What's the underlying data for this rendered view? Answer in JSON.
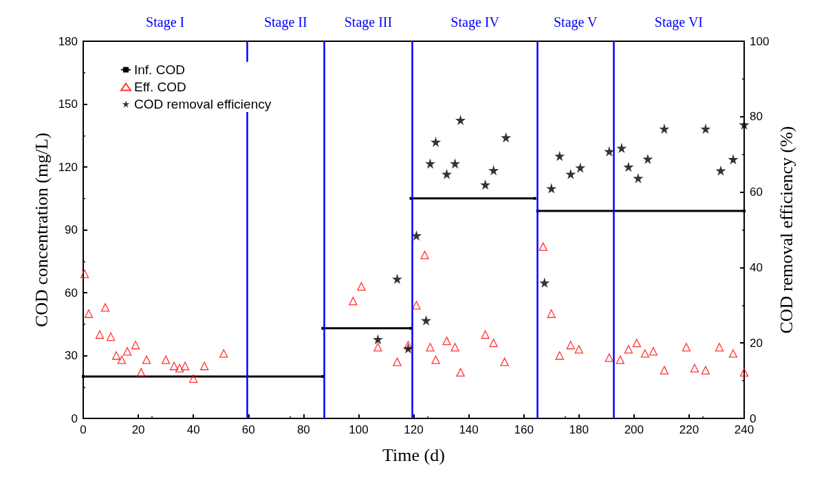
{
  "chart_data": {
    "type": "scatter",
    "xlabel": "Time (d)",
    "ylabel": "COD concentration (mg/L)",
    "y2label": "COD removal efficiency (%)",
    "xlim": [
      0,
      240
    ],
    "xticks": [
      0,
      20,
      40,
      60,
      80,
      100,
      120,
      140,
      160,
      180,
      200,
      220,
      240
    ],
    "ylim": [
      0,
      180
    ],
    "yticks": [
      0,
      30,
      60,
      90,
      120,
      150,
      180
    ],
    "y2lim": [
      0,
      100
    ],
    "y2ticks": [
      0,
      20,
      40,
      60,
      80,
      100
    ],
    "grid": false,
    "legend": "top left",
    "series": [
      {
        "name": "Inf. COD",
        "type": "line",
        "marker": "square",
        "color": "#000000",
        "x": [
          0,
          87,
          null,
          87,
          119,
          null,
          119,
          164,
          null,
          165,
          240
        ],
        "values": [
          20,
          20,
          null,
          43,
          43,
          null,
          105,
          105,
          null,
          99,
          99
        ]
      },
      {
        "name": "Eff. COD",
        "type": "scatter",
        "marker": "triangle",
        "color": "#ff0000",
        "x": [
          0.5,
          2,
          6,
          8,
          10,
          12,
          14,
          16,
          19,
          21,
          23,
          30,
          33,
          35,
          37,
          40,
          44,
          51,
          98,
          101,
          107,
          114,
          118,
          121,
          124,
          126,
          128,
          132,
          135,
          137,
          146,
          149,
          153,
          167,
          170,
          173,
          177,
          180,
          191,
          195,
          198,
          201,
          204,
          207,
          211,
          219,
          222,
          226,
          231,
          236,
          240
        ],
        "values": [
          69,
          50,
          40,
          53,
          39,
          30,
          28,
          32,
          35,
          22,
          28,
          28,
          25,
          24,
          25,
          19,
          25,
          31,
          56,
          63,
          34,
          27,
          35,
          54,
          78,
          34,
          28,
          37,
          34,
          22,
          40,
          36,
          27,
          82,
          50,
          30,
          35,
          33,
          29,
          28,
          33,
          36,
          31,
          32,
          23,
          34,
          24,
          23,
          34,
          31,
          22
        ]
      },
      {
        "name": "COD removal efficiency",
        "type": "scatter",
        "marker": "star",
        "color": "#000000",
        "axis": "y2",
        "x": [
          107,
          114,
          118,
          121,
          124.5,
          126,
          128,
          132,
          135,
          137,
          146,
          149,
          153.5,
          167.5,
          170,
          173,
          177,
          180.5,
          191,
          195.5,
          198,
          201.5,
          205,
          211,
          226,
          231.5,
          236,
          240
        ],
        "values": [
          21,
          37,
          18.6,
          48.5,
          26,
          67.6,
          73.3,
          64.8,
          67.6,
          79.1,
          62,
          65.8,
          74.5,
          36,
          61,
          69.6,
          64.8,
          66.5,
          70.8,
          71.7,
          66.7,
          63.7,
          68.8,
          76.8,
          76.8,
          65.7,
          68.7,
          77.9
        ]
      }
    ],
    "ref_lines": [
      {
        "axis": "x",
        "value": 59.5,
        "color": "#0000ff"
      },
      {
        "axis": "x",
        "value": 87.5,
        "color": "#0000ff"
      },
      {
        "axis": "x",
        "value": 119.5,
        "color": "#0000ff"
      },
      {
        "axis": "x",
        "value": 165,
        "color": "#0000ff"
      },
      {
        "axis": "x",
        "value": 192.5,
        "color": "#0000ff"
      }
    ],
    "annotations": [
      "Stage I",
      "Stage II",
      "Stage III",
      "Stage IV",
      "Stage V",
      "Stage VI"
    ]
  }
}
